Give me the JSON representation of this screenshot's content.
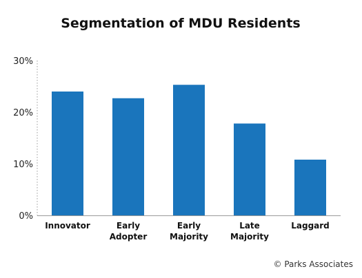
{
  "chart_data": {
    "type": "bar",
    "title": "Segmentation of MDU Residents",
    "xlabel": "",
    "ylabel": "",
    "categories": [
      "Innovator",
      "Early\nAdopter",
      "Early\nMajority",
      "Late\nMajority",
      "Laggard"
    ],
    "values": [
      24,
      22.7,
      25.3,
      17.8,
      10.8
    ],
    "value_unit": "%",
    "ylim": [
      0,
      30
    ],
    "yticks": [
      "0%",
      "10%",
      "20%",
      "30%"
    ],
    "ytick_values": [
      0,
      10,
      20,
      30
    ],
    "grid": false,
    "legend": "none",
    "bar_color": "#1a75bc"
  },
  "source": "© Parks Associates"
}
